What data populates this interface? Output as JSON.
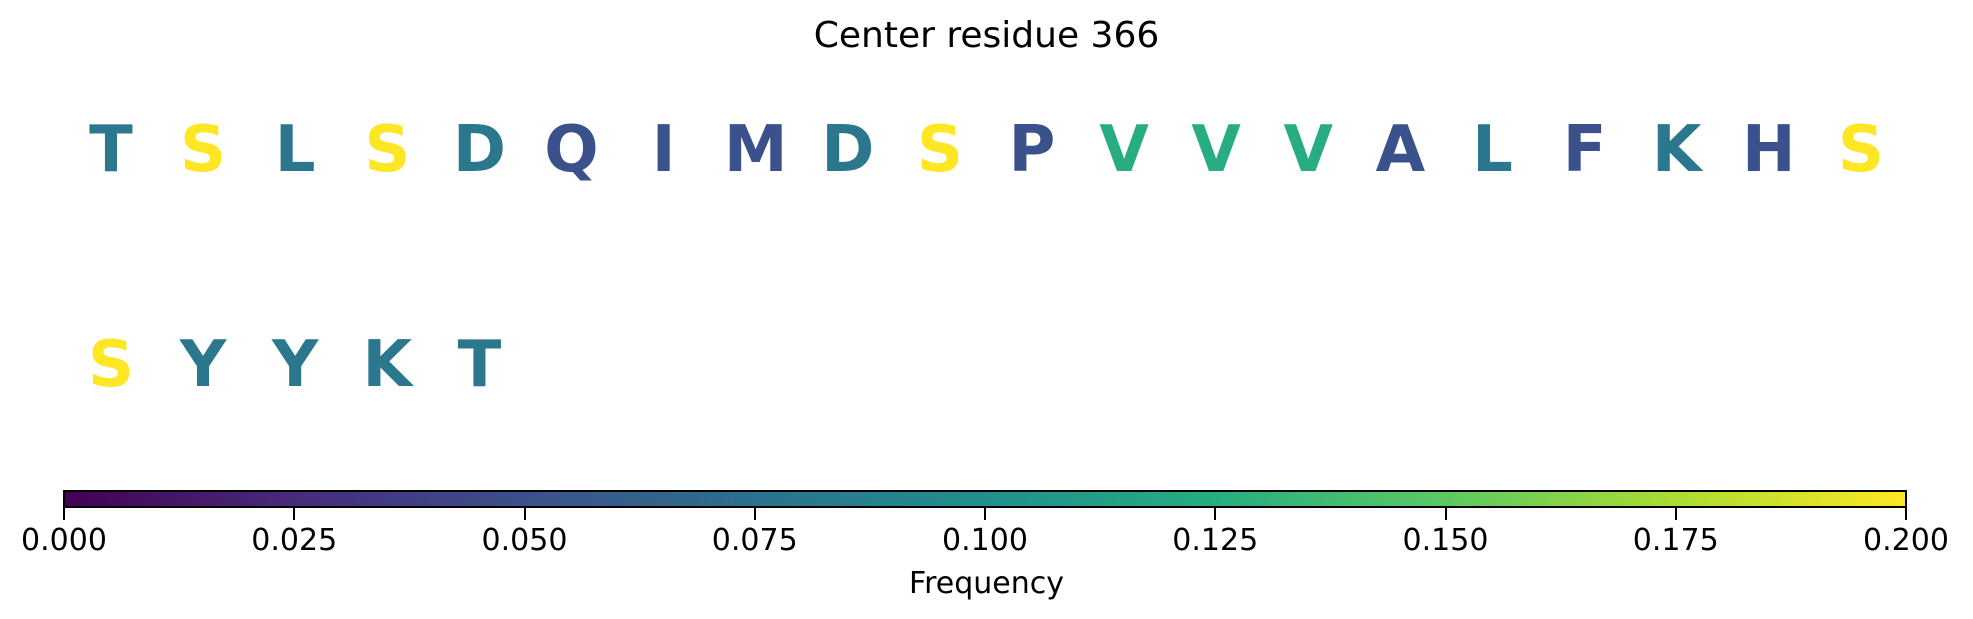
{
  "chart_data": {
    "type": "sequence-heatmap",
    "title": "Center residue 366",
    "colormap": "viridis",
    "colorbar": {
      "label": "Frequency",
      "range": [
        0.0,
        0.2
      ],
      "ticks": [
        "0.000",
        "0.025",
        "0.050",
        "0.075",
        "0.100",
        "0.125",
        "0.150",
        "0.175",
        "0.200"
      ]
    },
    "rows": [
      {
        "residues": [
          "T",
          "S",
          "L",
          "S",
          "D",
          "Q",
          "I",
          "M",
          "D",
          "S",
          "P",
          "V",
          "V",
          "V",
          "A",
          "L",
          "F",
          "K",
          "H",
          "S"
        ],
        "frequencies": [
          0.08,
          0.2,
          0.08,
          0.2,
          0.08,
          0.05,
          0.05,
          0.05,
          0.08,
          0.2,
          0.05,
          0.125,
          0.125,
          0.125,
          0.05,
          0.08,
          0.05,
          0.08,
          0.05,
          0.2
        ]
      },
      {
        "residues": [
          "S",
          "Y",
          "Y",
          "K",
          "T"
        ],
        "frequencies": [
          0.2,
          0.08,
          0.08,
          0.08,
          0.08
        ]
      }
    ]
  }
}
